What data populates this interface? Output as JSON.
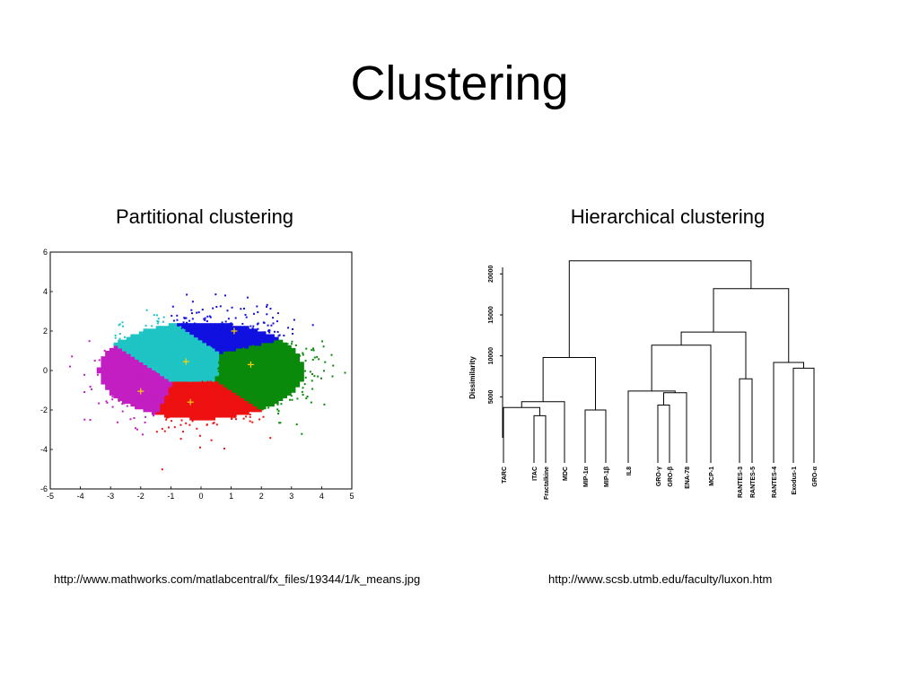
{
  "slide": {
    "title": "Clustering",
    "left_subtitle": "Partitional clustering",
    "right_subtitle": "Hierarchical clustering",
    "left_source": "http://www.mathworks.com/matlabcentral/fx_files/19344/1/k_means.jpg",
    "right_source": "http://www.scsb.utmb.edu/faculty/luxon.htm"
  },
  "kmeans": {
    "xlim": [
      -5,
      5
    ],
    "ylim": [
      -6,
      6
    ],
    "xticks": [
      "-5",
      "-4",
      "-3",
      "-2",
      "-1",
      "0",
      "1",
      "2",
      "3",
      "4",
      "5"
    ],
    "yticks": [
      "6",
      "4",
      "2",
      "0",
      "-2",
      "-4",
      "-6"
    ],
    "centroid_color": "#ffd400",
    "clusters": [
      {
        "color": "#1010e0",
        "centroid": [
          1.1,
          2.0
        ]
      },
      {
        "color": "#1fc4c4",
        "centroid": [
          -0.5,
          0.45
        ]
      },
      {
        "color": "#0a8a0a",
        "centroid": [
          1.65,
          0.3
        ]
      },
      {
        "color": "#c21ec2",
        "centroid": [
          -2.0,
          -1.05
        ]
      },
      {
        "color": "#ee1111",
        "centroid": [
          -0.35,
          -1.6
        ]
      }
    ]
  },
  "dendrogram": {
    "ylabel": "Dissimilarity",
    "yticks": [
      "5000",
      "10000",
      "15000",
      "20000"
    ],
    "leaves": [
      "TARC",
      "ITAC",
      "Fractalkine",
      "MDC",
      "MIP-1α",
      "MIP-1β",
      "IL8",
      "GRO-γ",
      "GRO-β",
      "ENA-78",
      "MCP-1",
      "RANTES-3",
      "RANTES-5",
      "RANTES-4",
      "Exodus-1",
      "GRO-α"
    ]
  }
}
